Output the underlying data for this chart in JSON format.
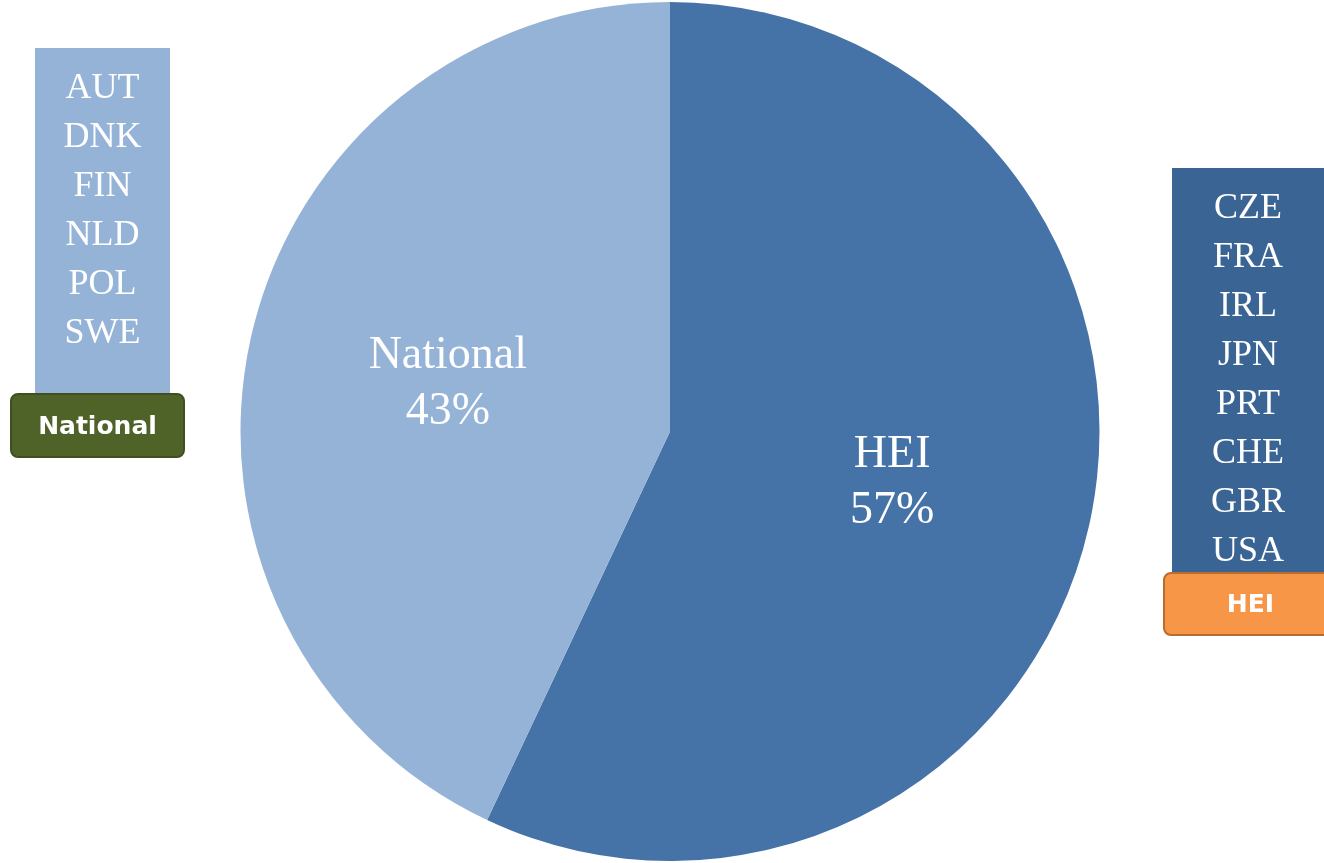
{
  "chart_data": {
    "type": "pie",
    "categories": [
      "HEI",
      "National"
    ],
    "values": [
      57,
      43
    ],
    "colors": [
      "#4572a7",
      "#95b3d7"
    ],
    "value_labels": [
      "57%",
      "43%"
    ],
    "legend": false,
    "annotations": [
      "AUT\nDNK\nFIN\nNLD\nPOL\nSWE",
      "National",
      "CZE\nFRA\nIRL\nJPN\nPRT\nCHE\nGBR\nUSA",
      "HEI"
    ]
  }
}
